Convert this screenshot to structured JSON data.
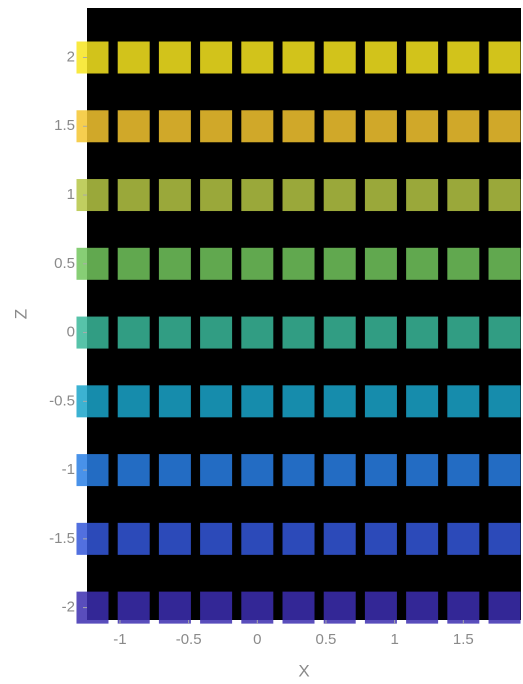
{
  "chart_data": {
    "type": "scatter",
    "xlabel": "X",
    "ylabel": "Z",
    "x": [
      -1.2,
      -0.9,
      -0.6,
      -0.3,
      0,
      0.3,
      0.6,
      0.9,
      1.2,
      1.5,
      1.8,
      -1.2,
      -0.9,
      -0.6,
      -0.3,
      0,
      0.3,
      0.6,
      0.9,
      1.2,
      1.5,
      1.8,
      -1.2,
      -0.9,
      -0.6,
      -0.3,
      0,
      0.3,
      0.6,
      0.9,
      1.2,
      1.5,
      1.8,
      -1.2,
      -0.9,
      -0.6,
      -0.3,
      0,
      0.3,
      0.6,
      0.9,
      1.2,
      1.5,
      1.8,
      -1.2,
      -0.9,
      -0.6,
      -0.3,
      0,
      0.3,
      0.6,
      0.9,
      1.2,
      1.5,
      1.8,
      -1.2,
      -0.9,
      -0.6,
      -0.3,
      0,
      0.3,
      0.6,
      0.9,
      1.2,
      1.5,
      1.8,
      -1.2,
      -0.9,
      -0.6,
      -0.3,
      0,
      0.3,
      0.6,
      0.9,
      1.2,
      1.5,
      1.8,
      -1.2,
      -0.9,
      -0.6,
      -0.3,
      0,
      0.3,
      0.6,
      0.9,
      1.2,
      1.5,
      1.8,
      -1.2,
      -0.9,
      -0.6,
      -0.3,
      0,
      0.3,
      0.6,
      0.9,
      1.2,
      1.5,
      1.8
    ],
    "values": [
      -2,
      -2,
      -2,
      -2,
      -2,
      -2,
      -2,
      -2,
      -2,
      -2,
      -2,
      -1.5,
      -1.5,
      -1.5,
      -1.5,
      -1.5,
      -1.5,
      -1.5,
      -1.5,
      -1.5,
      -1.5,
      -1.5,
      -1,
      -1,
      -1,
      -1,
      -1,
      -1,
      -1,
      -1,
      -1,
      -1,
      -1,
      -0.5,
      -0.5,
      -0.5,
      -0.5,
      -0.5,
      -0.5,
      -0.5,
      -0.5,
      -0.5,
      -0.5,
      -0.5,
      0,
      0,
      0,
      0,
      0,
      0,
      0,
      0,
      0,
      0,
      0,
      0.5,
      0.5,
      0.5,
      0.5,
      0.5,
      0.5,
      0.5,
      0.5,
      0.5,
      0.5,
      0.5,
      1,
      1,
      1,
      1,
      1,
      1,
      1,
      1,
      1,
      1,
      1,
      1.5,
      1.5,
      1.5,
      1.5,
      1.5,
      1.5,
      1.5,
      1.5,
      1.5,
      1.5,
      1.5,
      2,
      2,
      2,
      2,
      2,
      2,
      2,
      2,
      2,
      2,
      2
    ],
    "colormap": [
      "#3e26a8",
      "#2f6ff0",
      "#15b1c0",
      "#7ac855",
      "#f5c431",
      "#f9fb15"
    ],
    "clim": [
      -2.1,
      2.35
    ],
    "xlim": [
      -1.24,
      1.92
    ],
    "xticks": [
      -1,
      -0.5,
      0,
      0.5,
      1,
      1.5
    ],
    "ylim": [
      -2.09,
      2.36
    ],
    "yticks": [
      -2,
      -1.5,
      -1,
      -0.5,
      0,
      0.5,
      1,
      1.5,
      2
    ]
  }
}
